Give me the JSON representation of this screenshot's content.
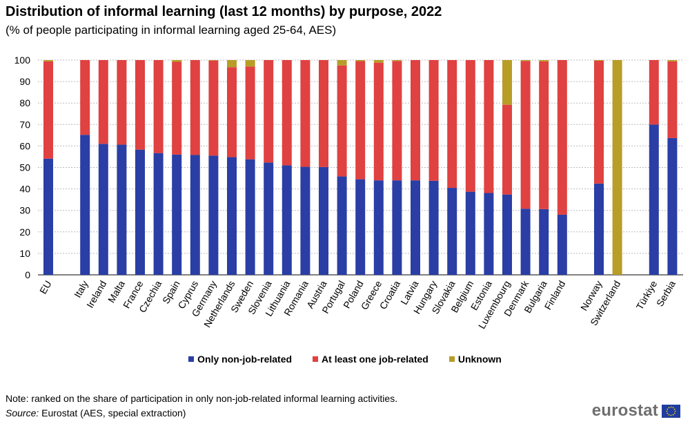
{
  "title": "Distribution of informal learning (last 12 months) by purpose, 2022",
  "subtitle": "(% of people participating in informal learning aged 25-64, AES)",
  "note": "Note: ranked on the share of participation in only non-job-related informal learning activities.",
  "source_label": "Source:",
  "source_text": " Eurostat (AES, special extraction)",
  "logo_text": "eurostat",
  "colors": {
    "non_job": "#2a3ea5",
    "job": "#e04141",
    "unknown": "#b89d27",
    "grid": "#b8b8b8",
    "logo_flag": "#1f3d9e",
    "logo_stars": "#ffd600"
  },
  "chart_data": {
    "type": "bar",
    "stacked": true,
    "ylim": [
      0,
      100
    ],
    "yticks": [
      0,
      10,
      20,
      30,
      40,
      50,
      60,
      70,
      80,
      90,
      100
    ],
    "grid": true,
    "legend_position": "bottom",
    "categories": [
      "EU",
      "Italy",
      "Ireland",
      "Malta",
      "France",
      "Czechia",
      "Spain",
      "Cyprus",
      "Germany",
      "Netherlands",
      "Sweden",
      "Slovenia",
      "Lithuania",
      "Romania",
      "Austria",
      "Portugal",
      "Poland",
      "Greece",
      "Croatia",
      "Latvia",
      "Hungary",
      "Slovakia",
      "Belgium",
      "Estonia",
      "Luxembourg",
      "Denmark",
      "Bulgaria",
      "Finland",
      "Norway",
      "Switzerland",
      "Türkiye",
      "Serbia"
    ],
    "groups_after": [
      0,
      27,
      29
    ],
    "series": [
      {
        "name": "Only non-job-related",
        "color_key": "non_job",
        "values": [
          54.1,
          65.2,
          61.0,
          60.6,
          58.3,
          56.7,
          56.0,
          55.8,
          55.5,
          54.8,
          53.8,
          52.3,
          51.0,
          50.3,
          50.2,
          45.8,
          44.5,
          44.0,
          44.0,
          44.0,
          43.8,
          40.5,
          38.7,
          38.1,
          37.4,
          30.8,
          30.6,
          28.0,
          42.5,
          0,
          70.0,
          63.7
        ]
      },
      {
        "name": "At least one job-related",
        "color_key": "job",
        "values": [
          45.3,
          34.8,
          39.0,
          39.4,
          41.7,
          43.3,
          43.2,
          44.2,
          44.3,
          41.9,
          43.2,
          47.7,
          49.0,
          49.7,
          49.8,
          51.7,
          55.0,
          54.8,
          55.6,
          56.0,
          56.2,
          59.5,
          61.3,
          61.9,
          41.8,
          68.8,
          68.8,
          72.0,
          57.2,
          0,
          30.0,
          35.7
        ]
      },
      {
        "name": "Unknown",
        "color_key": "unknown",
        "values": [
          0.6,
          0,
          0,
          0,
          0,
          0,
          0.8,
          0,
          0.2,
          3.3,
          3.0,
          0,
          0,
          0,
          0,
          2.5,
          0.5,
          1.2,
          0.4,
          0,
          0,
          0,
          0,
          0,
          20.8,
          0.4,
          0.6,
          0,
          0.3,
          100,
          0,
          0.6
        ]
      }
    ]
  }
}
